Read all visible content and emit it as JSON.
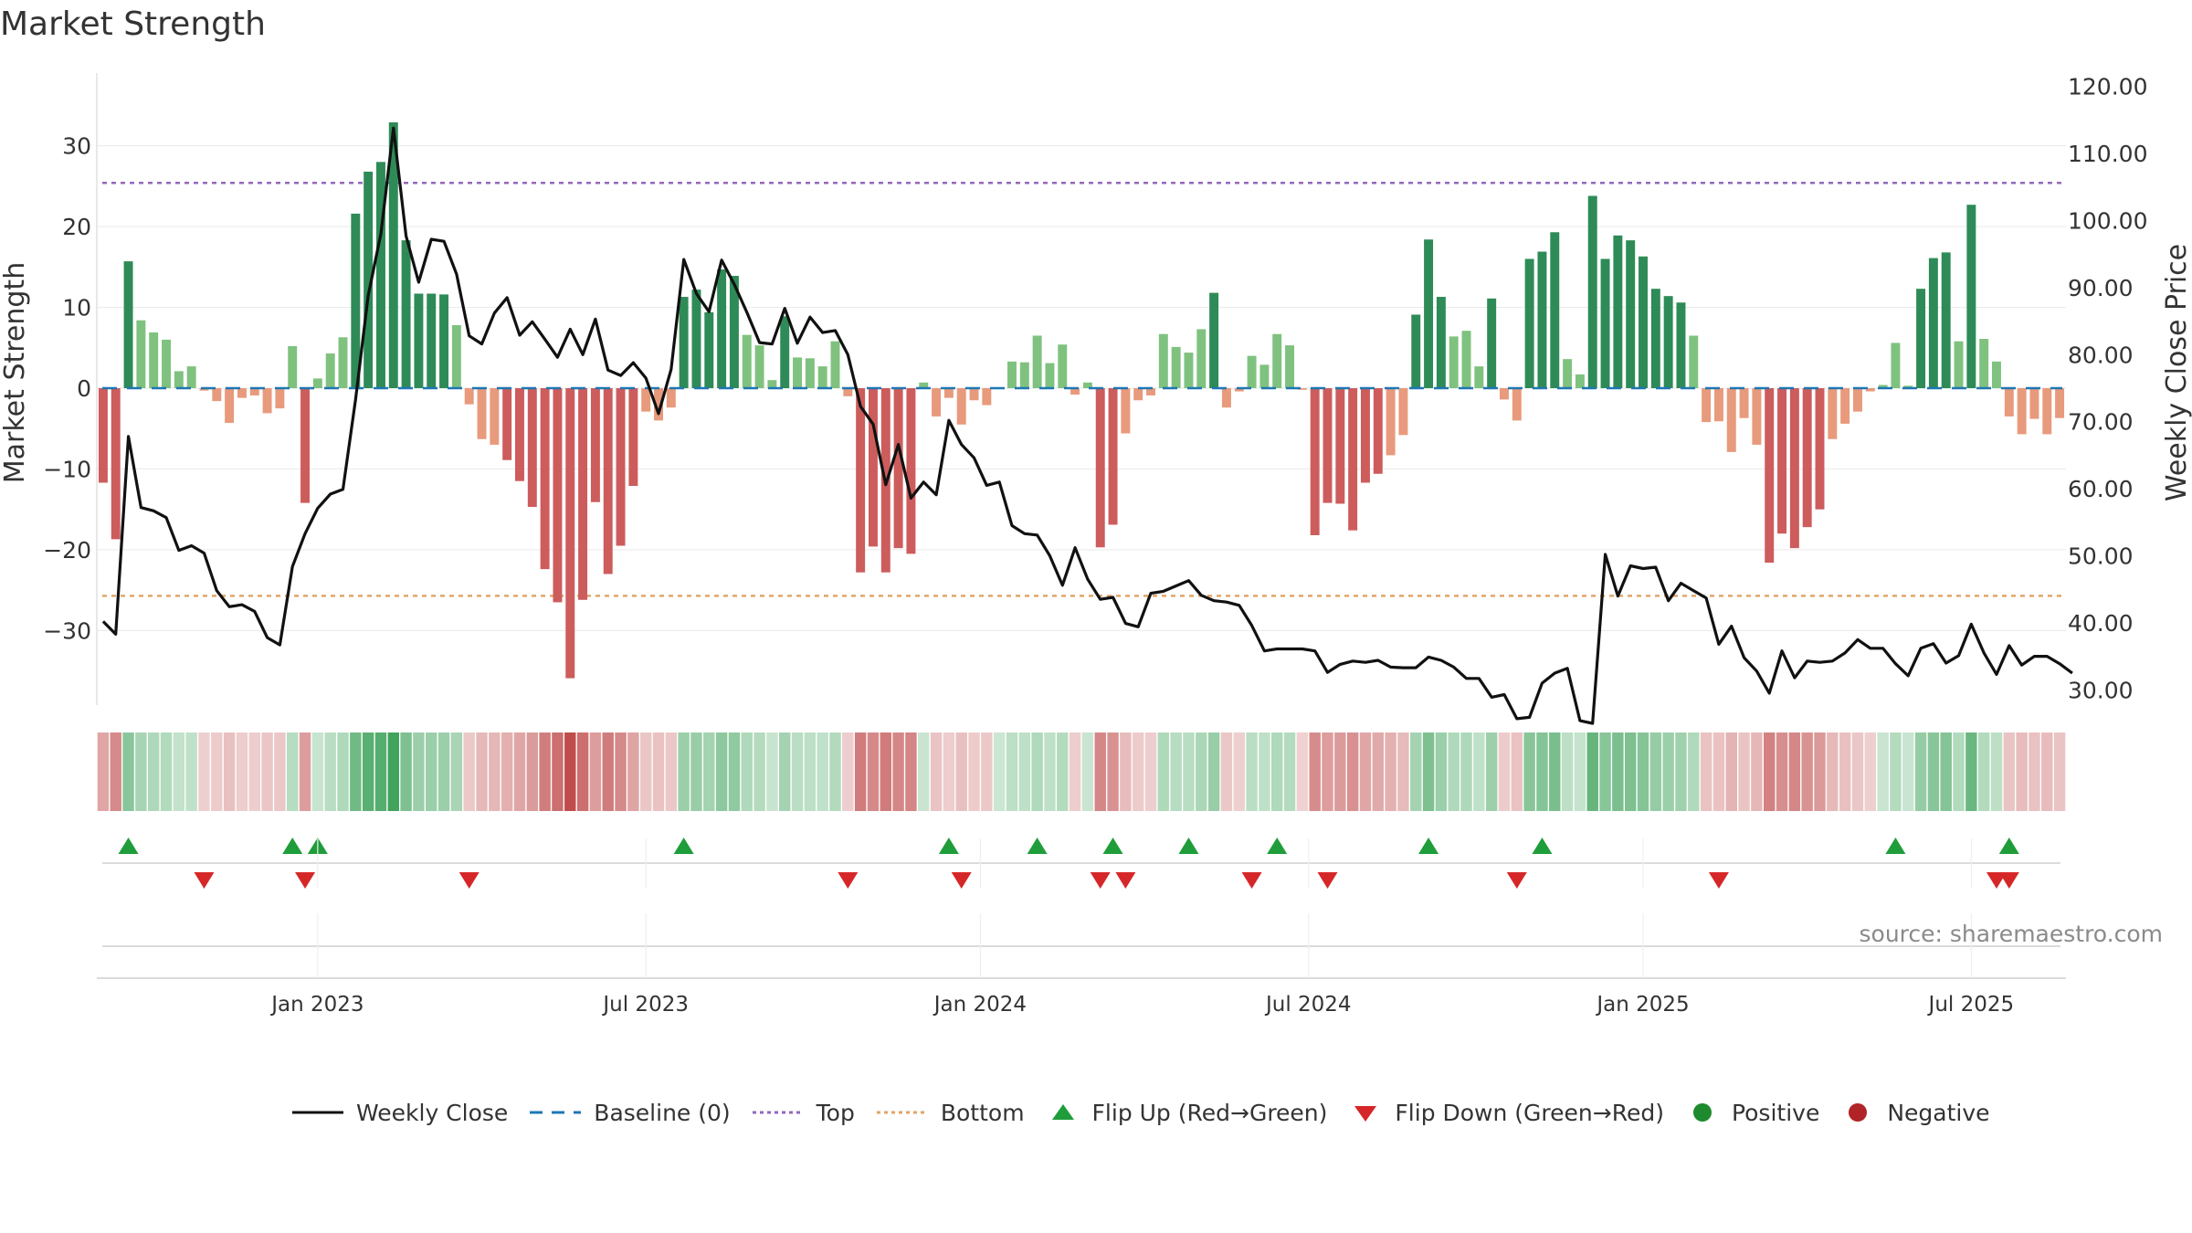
{
  "chart_data": {
    "type": "bar",
    "title": "Market Strength",
    "ylabel": "Market Strength",
    "ylabel_right": "Weekly Close Price",
    "ylim": [
      -39,
      39
    ],
    "ylim_right": [
      28,
      122
    ],
    "yticks": [
      -30,
      -20,
      -10,
      0,
      10,
      20,
      30
    ],
    "yticks_right": [
      "30.00",
      "40.00",
      "50.00",
      "60.00",
      "70.00",
      "80.00",
      "90.00",
      "100.00",
      "110.00",
      "120.00"
    ],
    "x_start": "2022-09-05",
    "x_interval": "weekly",
    "xtick_labels": [
      "Jan 2023",
      "Jul 2023",
      "Jan 2024",
      "Jul 2024",
      "Jan 2025",
      "Jul 2025"
    ],
    "xtick_weeks": [
      17,
      43,
      69.5,
      95.5,
      122,
      148
    ],
    "top_level": 25.4,
    "bottom_level": -25.7,
    "baseline": 0,
    "strength": [
      -11.7,
      -18.7,
      15.7,
      8.4,
      6.9,
      6.0,
      2.1,
      2.7,
      -0.3,
      -1.6,
      -4.3,
      -1.2,
      -0.9,
      -3.1,
      -2.5,
      5.2,
      -14.2,
      1.2,
      4.3,
      6.3,
      21.6,
      26.8,
      28.0,
      32.9,
      18.3,
      11.7,
      11.7,
      11.6,
      7.8,
      -2.0,
      -6.3,
      -7.0,
      -8.9,
      -11.5,
      -14.7,
      -22.4,
      -26.5,
      -35.9,
      -26.2,
      -14.1,
      -23.0,
      -19.5,
      -12.1,
      -2.9,
      -4.0,
      -2.4,
      11.3,
      12.2,
      9.4,
      14.7,
      13.9,
      6.6,
      5.3,
      1.0,
      8.9,
      3.8,
      3.7,
      2.7,
      5.8,
      -1.0,
      -22.8,
      -19.6,
      -22.8,
      -19.8,
      -20.5,
      0.7,
      -3.5,
      -1.2,
      -4.5,
      -1.5,
      -2.1,
      0.1,
      3.3,
      3.2,
      6.5,
      3.1,
      5.4,
      -0.8,
      0.7,
      -19.7,
      -16.9,
      -5.6,
      -1.5,
      -0.9,
      6.7,
      5.1,
      4.4,
      7.3,
      11.8,
      -2.4,
      -0.4,
      4.0,
      2.9,
      6.7,
      5.3,
      -0.2,
      -18.2,
      -14.2,
      -14.3,
      -17.6,
      -11.7,
      -10.6,
      -8.3,
      -5.8,
      9.1,
      18.4,
      11.3,
      6.4,
      7.1,
      2.7,
      11.1,
      -1.4,
      -4.0,
      16.0,
      16.9,
      19.3,
      3.6,
      1.7,
      23.8,
      16.0,
      18.9,
      18.3,
      16.3,
      12.3,
      11.4,
      10.6,
      6.5,
      -4.2,
      -4.1,
      -7.9,
      -3.7,
      -7.0,
      -21.6,
      -18.0,
      -19.8,
      -17.2,
      -15.0,
      -6.3,
      -4.4,
      -2.9,
      -0.4,
      0.4,
      5.6,
      0.3,
      12.3,
      16.1,
      16.8,
      5.8,
      22.7,
      6.1,
      3.3,
      -3.5,
      -5.7,
      -3.8,
      -5.7,
      -3.7
    ],
    "close": [
      40.2,
      38.3,
      67.8,
      57.2,
      56.7,
      55.7,
      50.8,
      51.5,
      50.4,
      44.8,
      42.4,
      42.7,
      41.7,
      37.8,
      36.7,
      48.4,
      53.3,
      57.1,
      59.2,
      59.9,
      73.3,
      88.8,
      98.0,
      113.8,
      97.7,
      90.8,
      97.2,
      96.9,
      92.0,
      82.8,
      81.6,
      86.2,
      88.5,
      82.9,
      84.9,
      82.3,
      79.6,
      83.8,
      80.0,
      85.3,
      77.7,
      76.9,
      78.8,
      76.5,
      71.2,
      77.8,
      94.2,
      89.1,
      86.4,
      94.1,
      90.5,
      86.3,
      81.8,
      81.6,
      86.9,
      81.7,
      85.6,
      83.3,
      83.6,
      80.0,
      72.3,
      69.6,
      60.6,
      66.6,
      58.6,
      61.0,
      59.1,
      70.2,
      66.6,
      64.6,
      60.5,
      61.0,
      54.5,
      53.3,
      53.1,
      50.0,
      45.6,
      51.2,
      46.5,
      43.5,
      43.8,
      39.9,
      39.4,
      44.4,
      44.7,
      45.5,
      46.3,
      44.1,
      43.3,
      43.1,
      42.6,
      39.6,
      35.8,
      36.1,
      36.1,
      36.1,
      35.8,
      32.6,
      33.8,
      34.3,
      34.1,
      34.4,
      33.4,
      33.3,
      33.3,
      34.9,
      34.4,
      33.4,
      31.7,
      31.7,
      28.9,
      29.3,
      25.7,
      25.9,
      31.0,
      32.5,
      33.2,
      25.4,
      25.0,
      50.2,
      44.0,
      48.5,
      48.1,
      48.3,
      43.3,
      45.9,
      44.8,
      43.7,
      36.8,
      39.5,
      34.8,
      32.8,
      29.5,
      35.8,
      31.8,
      34.3,
      34.1,
      34.3,
      35.5,
      37.5,
      36.2,
      36.2,
      33.9,
      32.1,
      36.2,
      36.9,
      34.0,
      35.1,
      39.8,
      35.5,
      32.3,
      36.6,
      33.7,
      35.0,
      35.0,
      33.9,
      32.5
    ],
    "flips_up": [
      2,
      15,
      17,
      46,
      67,
      74,
      80,
      86,
      93,
      105,
      114,
      142,
      151
    ],
    "flips_down": [
      8,
      16,
      29,
      59,
      68,
      79,
      81,
      91,
      97,
      112,
      128,
      150,
      151
    ],
    "series": [
      {
        "name": "Weekly Close",
        "color": "#111111"
      },
      {
        "name": "Baseline (0)",
        "color": "#1f77b4"
      },
      {
        "name": "Top",
        "color": "#9467bd"
      },
      {
        "name": "Bottom",
        "color": "#e0a66a"
      },
      {
        "name": "Flip Up (Red→Green)",
        "color": "#1f9d3a"
      },
      {
        "name": "Flip Down (Green→Red)",
        "color": "#d62728"
      },
      {
        "name": "Positive",
        "color": "#1e8a2e"
      },
      {
        "name": "Negative",
        "color": "#b02428"
      }
    ],
    "colors": {
      "pos_strong": "#2e8b57",
      "pos_weak": "#7fc27f",
      "neg_strong": "#cd5c5c",
      "neg_weak": "#e89a7c"
    },
    "grid": true,
    "legend_position": "bottom"
  },
  "source": "source: sharemaestro.com",
  "legend": {
    "weekly_close": "Weekly Close",
    "baseline": "Baseline (0)",
    "top": "Top",
    "bottom": "Bottom",
    "flip_up": "Flip Up (Red→Green)",
    "flip_down": "Flip Down (Green→Red)",
    "positive": "Positive",
    "negative": "Negative"
  }
}
